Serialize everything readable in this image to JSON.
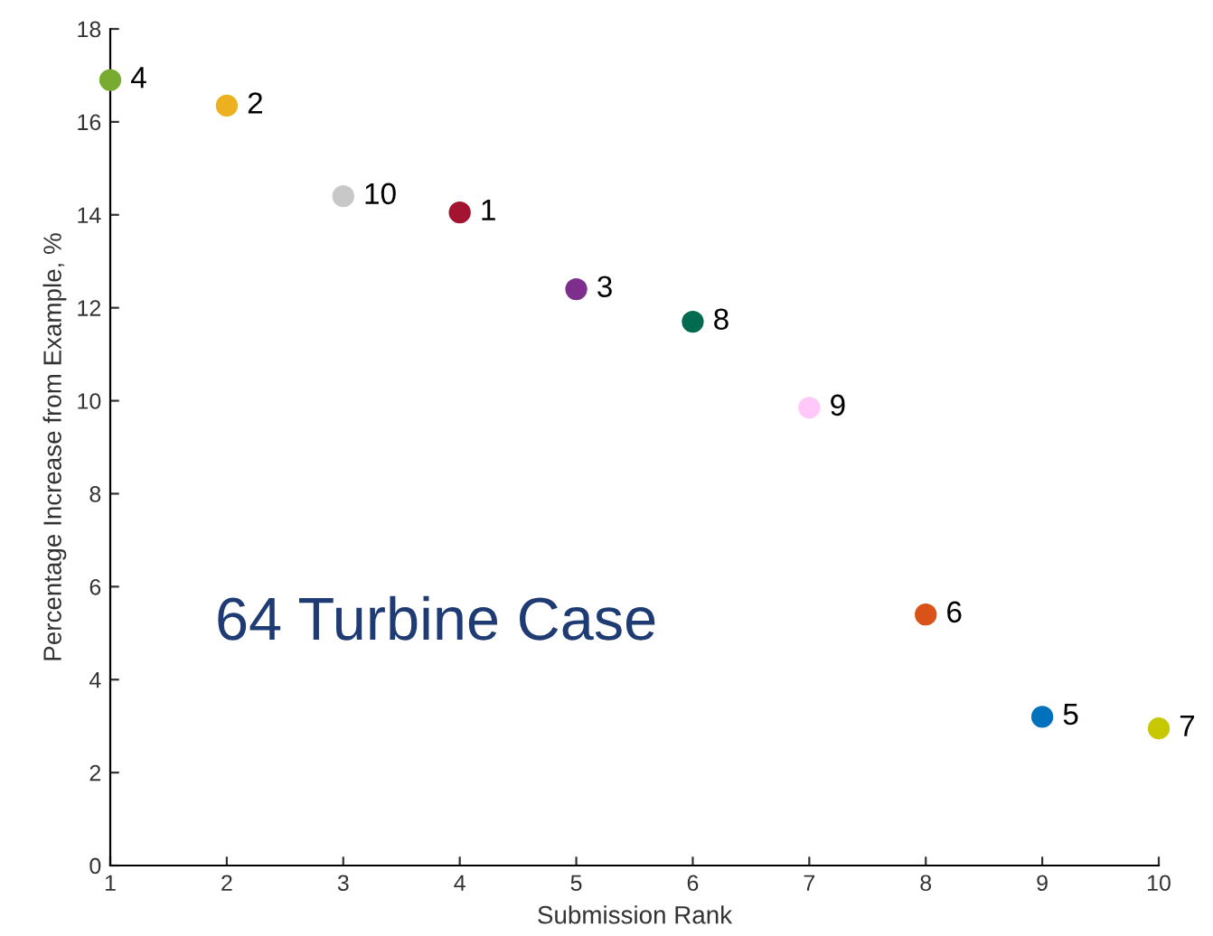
{
  "chart_data": {
    "type": "scatter",
    "xlabel": "Submission Rank",
    "ylabel": "Percentage Increase from Example, %",
    "x": [
      1,
      2,
      3,
      4,
      5,
      6,
      7,
      8,
      9,
      10
    ],
    "values": [
      16.9,
      16.35,
      14.4,
      14.05,
      12.4,
      11.7,
      9.85,
      5.4,
      3.2,
      2.95
    ],
    "colors": [
      "#77ac30",
      "#edb120",
      "#c8c8c8",
      "#a2142f",
      "#7e2f8e",
      "#006b4f",
      "#ffc8f8",
      "#d95319",
      "#0072bd",
      "#c8c800"
    ],
    "annotations": [
      {
        "text": "4",
        "x": 1,
        "y": 16.9
      },
      {
        "text": "2",
        "x": 2,
        "y": 16.35
      },
      {
        "text": "10",
        "x": 3,
        "y": 14.4
      },
      {
        "text": "1",
        "x": 4,
        "y": 14.05
      },
      {
        "text": "3",
        "x": 5,
        "y": 12.4
      },
      {
        "text": "8",
        "x": 6,
        "y": 11.7
      },
      {
        "text": "9",
        "x": 7,
        "y": 9.85
      },
      {
        "text": "6",
        "x": 8,
        "y": 5.4
      },
      {
        "text": "5",
        "x": 9,
        "y": 3.2
      },
      {
        "text": "7",
        "x": 10,
        "y": 2.95
      },
      "64 Turbine Case"
    ],
    "xlim": [
      1,
      10
    ],
    "xticks": [
      1,
      2,
      3,
      4,
      5,
      6,
      7,
      8,
      9,
      10
    ],
    "ylim": [
      0,
      18
    ],
    "yticks": [
      0,
      2,
      4,
      6,
      8,
      10,
      12,
      14,
      16,
      18
    ],
    "marker": "circle",
    "grid": false
  }
}
